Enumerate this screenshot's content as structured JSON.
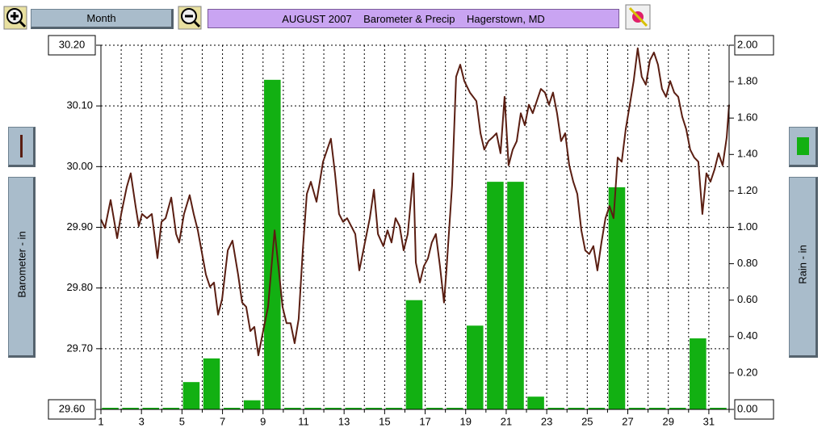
{
  "toolbar": {
    "period": "Month"
  },
  "chart_data": {
    "type": "combo",
    "title": "AUGUST 2007    Barometer & Precip    Hagerstown, MD",
    "xlim": [
      1,
      32
    ],
    "xticks": [
      1,
      3,
      5,
      7,
      9,
      11,
      13,
      15,
      17,
      19,
      21,
      23,
      25,
      27,
      29,
      31
    ],
    "x_minor_ticks": [
      2,
      4,
      6,
      8,
      10,
      12,
      14,
      16,
      18,
      20,
      22,
      24,
      26,
      28,
      30,
      32
    ],
    "ylim": [
      29.6,
      30.2
    ],
    "yticks": [
      {
        "value": 29.6,
        "label": "29.60"
      },
      {
        "value": 29.7,
        "label": "29.70"
      },
      {
        "value": 29.8,
        "label": "29.80"
      },
      {
        "value": 29.9,
        "label": "29.90"
      },
      {
        "value": 30.0,
        "label": "30.00"
      },
      {
        "value": 30.1,
        "label": "30.10"
      },
      {
        "value": 30.2,
        "label": "30.20"
      }
    ],
    "y2lim": [
      0,
      2
    ],
    "y2ticks": [
      {
        "value": 0,
        "label": "0.00"
      },
      {
        "value": 0.2,
        "label": "0.20"
      },
      {
        "value": 0.4,
        "label": "0.40"
      },
      {
        "value": 0.6,
        "label": "0.60"
      },
      {
        "value": 0.8,
        "label": "0.80"
      },
      {
        "value": 1.0,
        "label": "1.00"
      },
      {
        "value": 1.2,
        "label": "1.20"
      },
      {
        "value": 1.4,
        "label": "1.40"
      },
      {
        "value": 1.6,
        "label": "1.60"
      },
      {
        "value": 1.8,
        "label": "1.80"
      },
      {
        "value": 2.0,
        "label": "2.00"
      }
    ],
    "grid": true,
    "series": [
      {
        "name": "Rain - in",
        "type": "bar",
        "axis": "y2",
        "color": "#12b012",
        "x": [
          1,
          2,
          3,
          4,
          5,
          6,
          7,
          8,
          9,
          10,
          11,
          12,
          13,
          14,
          15,
          16,
          17,
          18,
          19,
          20,
          21,
          22,
          23,
          24,
          25,
          26,
          27,
          28,
          29,
          30,
          31
        ],
        "values": [
          0,
          0,
          0,
          0,
          0.15,
          0.28,
          0,
          0.05,
          1.81,
          0,
          0,
          0,
          0,
          0,
          0,
          0.6,
          0,
          0,
          0.46,
          1.25,
          1.25,
          0.07,
          0,
          0,
          0,
          1.22,
          0,
          0,
          0,
          0.39,
          0
        ]
      },
      {
        "name": "Barometer - in",
        "type": "line",
        "axis": "y",
        "color": "#5a1e12",
        "x": [
          1.0,
          1.2,
          1.48,
          1.8,
          2.0,
          2.27,
          2.47,
          2.71,
          2.87,
          3.03,
          3.27,
          3.51,
          3.79,
          3.99,
          4.19,
          4.47,
          4.71,
          4.86,
          5.1,
          5.38,
          5.58,
          5.78,
          6.18,
          6.38,
          6.58,
          6.78,
          6.98,
          7.26,
          7.49,
          7.77,
          7.97,
          8.17,
          8.37,
          8.57,
          8.77,
          8.97,
          9.25,
          9.57,
          9.76,
          9.96,
          10.16,
          10.36,
          10.56,
          10.76,
          10.96,
          11.16,
          11.36,
          11.64,
          11.96,
          12.35,
          12.55,
          12.75,
          12.95,
          13.15,
          13.55,
          13.75,
          13.95,
          14.27,
          14.47,
          14.67,
          14.94,
          15.14,
          15.34,
          15.54,
          15.74,
          15.94,
          16.14,
          16.42,
          16.54,
          16.74,
          16.94,
          17.14,
          17.33,
          17.53,
          17.73,
          17.93,
          18.05,
          18.33,
          18.53,
          18.73,
          18.93,
          19.21,
          19.53,
          19.73,
          19.92,
          20.12,
          20.32,
          20.52,
          20.72,
          20.92,
          21.12,
          21.32,
          21.52,
          21.72,
          21.92,
          22.12,
          22.31,
          22.51,
          22.71,
          22.91,
          23.11,
          23.31,
          23.51,
          23.71,
          23.91,
          24.11,
          24.31,
          24.51,
          24.71,
          24.9,
          25.1,
          25.3,
          25.5,
          25.7,
          25.9,
          26.1,
          26.3,
          26.5,
          26.7,
          26.9,
          27.1,
          27.29,
          27.49,
          27.69,
          27.89,
          28.09,
          28.29,
          28.49,
          28.69,
          28.89,
          29.09,
          29.29,
          29.49,
          29.69,
          29.88,
          30.08,
          30.28,
          30.48,
          30.68,
          30.88,
          31.08,
          31.28,
          31.48,
          31.68,
          31.88,
          32.0
        ],
        "values": [
          29.913,
          29.899,
          29.945,
          29.882,
          29.922,
          29.966,
          29.989,
          29.935,
          29.902,
          29.922,
          29.915,
          29.922,
          29.849,
          29.909,
          29.915,
          29.949,
          29.889,
          29.875,
          29.922,
          29.953,
          29.922,
          29.895,
          29.822,
          29.802,
          29.809,
          29.756,
          29.782,
          29.862,
          29.878,
          29.822,
          29.776,
          29.769,
          29.729,
          29.736,
          29.689,
          29.723,
          29.769,
          29.895,
          29.836,
          29.769,
          29.742,
          29.742,
          29.709,
          29.749,
          29.862,
          29.955,
          29.975,
          29.942,
          30.008,
          30.046,
          29.989,
          29.922,
          29.909,
          29.915,
          29.889,
          29.829,
          29.862,
          29.915,
          29.962,
          29.889,
          29.869,
          29.895,
          29.875,
          29.915,
          29.902,
          29.862,
          29.889,
          29.989,
          29.842,
          29.809,
          29.836,
          29.849,
          29.875,
          29.889,
          29.836,
          29.776,
          29.829,
          29.969,
          30.148,
          30.168,
          30.141,
          30.122,
          30.108,
          30.055,
          30.028,
          30.042,
          30.048,
          30.055,
          30.022,
          30.115,
          30.002,
          30.028,
          30.042,
          30.088,
          30.068,
          30.102,
          30.088,
          30.108,
          30.128,
          30.122,
          30.102,
          30.122,
          30.088,
          30.042,
          30.055,
          30.002,
          29.975,
          29.955,
          29.895,
          29.862,
          29.856,
          29.869,
          29.829,
          29.875,
          29.915,
          29.935,
          29.915,
          30.015,
          30.008,
          30.062,
          30.102,
          30.141,
          30.195,
          30.148,
          30.135,
          30.175,
          30.188,
          30.168,
          30.128,
          30.115,
          30.141,
          30.122,
          30.115,
          30.082,
          30.062,
          30.028,
          30.015,
          30.008,
          29.922,
          29.989,
          29.975,
          29.995,
          30.022,
          30.002,
          30.048,
          30.102
        ]
      }
    ]
  }
}
